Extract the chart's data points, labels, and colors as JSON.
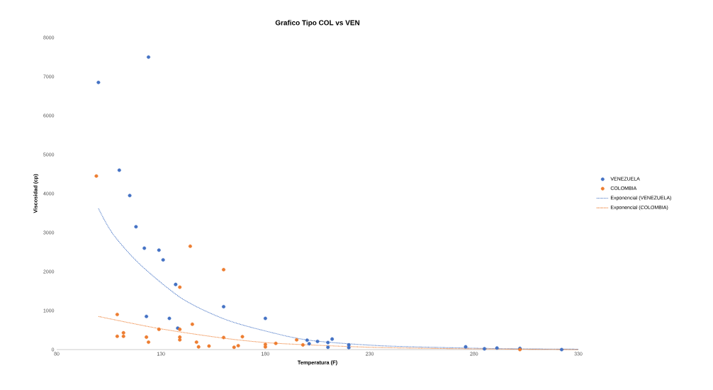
{
  "chart_data": {
    "type": "scatter",
    "title": "Grafico Tipo COL vs VEN",
    "xlabel": "Temperatura (F)",
    "ylabel": "Viscosidad (cp)",
    "xlim": [
      80,
      330
    ],
    "xticks": [
      80,
      130,
      180,
      230,
      280,
      330
    ],
    "ylim": [
      0,
      8000
    ],
    "yticks": [
      0,
      1000,
      2000,
      3000,
      4000,
      5000,
      6000,
      7000,
      8000
    ],
    "grid": false,
    "legend": "right",
    "marker": "circle",
    "series": [
      {
        "name": "VENEZUELA",
        "color": "#4472c4",
        "x": [
          100,
          124,
          110,
          115,
          118,
          122,
          129,
          131,
          137,
          160,
          180,
          123,
          134,
          138,
          200,
          201,
          205,
          210,
          210,
          212,
          220,
          220,
          276,
          285,
          291,
          302,
          322
        ],
        "values": [
          6850,
          7500,
          4600,
          3950,
          3150,
          2600,
          2550,
          2300,
          1670,
          1100,
          800,
          850,
          800,
          550,
          240,
          150,
          210,
          180,
          60,
          270,
          120,
          50,
          70,
          20,
          40,
          30,
          0
        ]
      },
      {
        "name": "COLOMBIA",
        "color": "#ed7d31",
        "x": [
          99,
          144,
          160,
          139,
          109,
          145,
          139,
          129,
          109,
          112,
          112,
          123,
          124,
          139,
          139,
          147,
          148,
          153,
          160,
          169,
          165,
          167,
          180,
          180,
          185,
          195,
          198,
          302
        ],
        "values": [
          4450,
          2650,
          2050,
          1600,
          900,
          650,
          520,
          520,
          340,
          430,
          340,
          320,
          190,
          320,
          250,
          190,
          70,
          90,
          310,
          330,
          60,
          100,
          130,
          70,
          160,
          250,
          120,
          0
        ]
      },
      {
        "name": "Exponencial (VENEZUELA)",
        "type": "line",
        "line_style": "dotted",
        "marker": "none",
        "color": "#4472c4",
        "x": [
          100,
          107,
          120,
          140,
          160,
          179,
          201,
          235,
          276,
          300,
          330
        ],
        "values": [
          3620,
          2960,
          2180,
          1310,
          790,
          490,
          240,
          100,
          40,
          20,
          10
        ]
      },
      {
        "name": "Exponencial (COLOMBIA)",
        "type": "line",
        "line_style": "dotted",
        "marker": "none",
        "color": "#ed7d31",
        "x": [
          100,
          129,
          159,
          180,
          201,
          230,
          260,
          300,
          330
        ],
        "values": [
          850,
          540,
          300,
          180,
          120,
          60,
          30,
          10,
          0
        ]
      }
    ]
  }
}
